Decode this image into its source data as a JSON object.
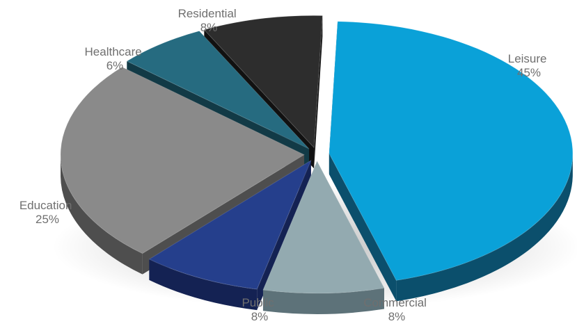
{
  "chart_data": {
    "type": "pie",
    "style": "3d-exploded",
    "slices": [
      {
        "label": "Leisure",
        "value": 45,
        "value_label": "45%",
        "color": "#0aa1d8",
        "side": "#0b4f6c"
      },
      {
        "label": "Commercial",
        "value": 8,
        "value_label": "8%",
        "color": "#93aab0",
        "side": "#5d7279"
      },
      {
        "label": "Public",
        "value": 8,
        "value_label": "8%",
        "color": "#253f8c",
        "side": "#142253"
      },
      {
        "label": "Education",
        "value": 25,
        "value_label": "25%",
        "color": "#8a8a8a",
        "side": "#4e4e4e"
      },
      {
        "label": "Healthcare",
        "value": 6,
        "value_label": "6%",
        "color": "#266b80",
        "side": "#123a46"
      },
      {
        "label": "Residential",
        "value": 8,
        "value_label": "8%",
        "color": "#2d2d2d",
        "side": "#111111"
      }
    ]
  }
}
